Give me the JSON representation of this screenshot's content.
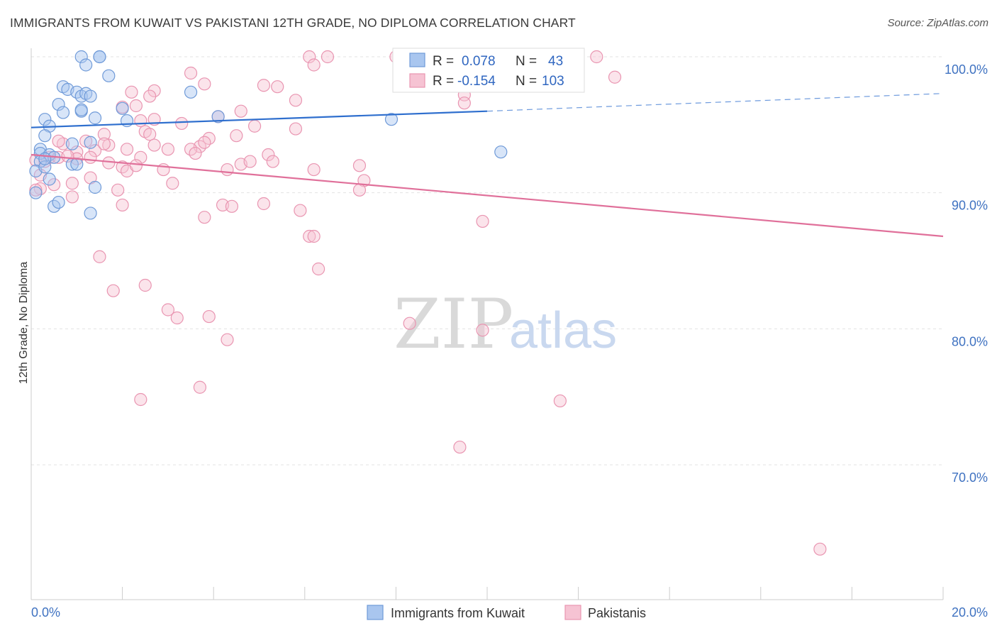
{
  "header": {
    "title": "IMMIGRANTS FROM KUWAIT VS PAKISTANI 12TH GRADE, NO DIPLOMA CORRELATION CHART",
    "source": "Source: ZipAtlas.com"
  },
  "watermark": {
    "zip": "ZIP",
    "atlas": "atlas"
  },
  "colors": {
    "kuwait_fill": "#a9c6ef",
    "kuwait_stroke": "#6f9ad8",
    "kuwait_line": "#2f6fce",
    "pak_fill": "#f6c3d3",
    "pak_stroke": "#e995b1",
    "pak_line": "#e0709a",
    "tick_label": "#3f72c1",
    "grid": "#e3e3e3"
  },
  "legend": {
    "rows": [
      {
        "r_label": "R =",
        "r_value": "0.078",
        "n_label": "N =",
        "n_value": "43"
      },
      {
        "r_label": "R =",
        "r_value": "-0.154",
        "n_label": "N =",
        "n_value": "103"
      }
    ]
  },
  "chart_data": {
    "type": "scatter",
    "xlabel": "",
    "ylabel": "12th Grade, No Diploma",
    "xlim": [
      0,
      20
    ],
    "ylim": [
      60,
      101.5
    ],
    "x_tick_labels": [
      "0.0%",
      "20.0%"
    ],
    "y_ticks": [
      70,
      80,
      90,
      100
    ],
    "y_tick_labels": [
      "70.0%",
      "80.0%",
      "90.0%",
      "100.0%"
    ],
    "grid": true,
    "legend_position": "top-center",
    "series": [
      {
        "name": "Immigrants from Kuwait",
        "trend": {
          "x_start": 0,
          "y_start": 94.8,
          "x_solid_end": 10,
          "y_solid_end": 96.0,
          "x_end": 20,
          "y_end": 97.3
        },
        "points": [
          [
            1.1,
            100
          ],
          [
            1.5,
            100
          ],
          [
            1.5,
            100
          ],
          [
            1.2,
            99.4
          ],
          [
            1.7,
            98.6
          ],
          [
            0.7,
            97.8
          ],
          [
            0.8,
            97.6
          ],
          [
            1.0,
            97.4
          ],
          [
            1.1,
            97.1
          ],
          [
            1.2,
            97.3
          ],
          [
            3.5,
            97.4
          ],
          [
            1.3,
            97.1
          ],
          [
            0.6,
            96.5
          ],
          [
            1.1,
            96.0
          ],
          [
            0.7,
            95.9
          ],
          [
            1.4,
            95.5
          ],
          [
            0.3,
            95.4
          ],
          [
            2.1,
            95.3
          ],
          [
            4.1,
            95.6
          ],
          [
            7.9,
            95.4
          ],
          [
            0.4,
            94.9
          ],
          [
            0.3,
            94.2
          ],
          [
            1.3,
            93.7
          ],
          [
            0.2,
            93.2
          ],
          [
            0.2,
            92.9
          ],
          [
            0.4,
            92.8
          ],
          [
            0.5,
            92.6
          ],
          [
            10.3,
            93.0
          ],
          [
            0.2,
            92.3
          ],
          [
            0.9,
            92.1
          ],
          [
            0.1,
            91.6
          ],
          [
            0.4,
            91.0
          ],
          [
            1.4,
            90.4
          ],
          [
            0.1,
            90.0
          ],
          [
            0.5,
            89.0
          ],
          [
            1.3,
            88.5
          ],
          [
            1.0,
            92.1
          ],
          [
            0.6,
            89.3
          ],
          [
            0.3,
            91.9
          ],
          [
            2.0,
            96.2
          ],
          [
            0.9,
            93.6
          ],
          [
            1.1,
            96.1
          ],
          [
            0.3,
            92.5
          ]
        ]
      },
      {
        "name": "Pakistanis",
        "trend": {
          "x_start": 0,
          "y_start": 92.8,
          "x_end": 20,
          "y_end": 86.8
        },
        "points": [
          [
            6.1,
            100
          ],
          [
            6.5,
            100
          ],
          [
            8.0,
            100
          ],
          [
            11.1,
            100
          ],
          [
            12.4,
            100
          ],
          [
            8.2,
            100
          ],
          [
            3.5,
            98.8
          ],
          [
            6.2,
            99.4
          ],
          [
            8.4,
            99.4
          ],
          [
            12.8,
            98.5
          ],
          [
            8.6,
            98.7
          ],
          [
            3.8,
            98.0
          ],
          [
            5.1,
            97.9
          ],
          [
            5.4,
            97.8
          ],
          [
            2.2,
            97.4
          ],
          [
            2.7,
            97.5
          ],
          [
            2.6,
            97.1
          ],
          [
            9.5,
            97.2
          ],
          [
            9.5,
            96.6
          ],
          [
            2.3,
            96.4
          ],
          [
            2.0,
            96.3
          ],
          [
            4.6,
            96.0
          ],
          [
            4.1,
            95.6
          ],
          [
            2.7,
            95.4
          ],
          [
            2.4,
            95.3
          ],
          [
            3.3,
            95.1
          ],
          [
            4.9,
            94.9
          ],
          [
            5.8,
            94.7
          ],
          [
            2.5,
            94.5
          ],
          [
            2.6,
            94.3
          ],
          [
            1.6,
            94.3
          ],
          [
            4.5,
            94.2
          ],
          [
            3.9,
            94.0
          ],
          [
            1.2,
            93.8
          ],
          [
            0.7,
            93.6
          ],
          [
            2.7,
            93.5
          ],
          [
            3.7,
            93.4
          ],
          [
            1.7,
            93.5
          ],
          [
            3.5,
            93.2
          ],
          [
            2.1,
            93.2
          ],
          [
            1.4,
            93.1
          ],
          [
            1.0,
            93.0
          ],
          [
            3.6,
            92.9
          ],
          [
            5.2,
            92.8
          ],
          [
            2.4,
            92.6
          ],
          [
            0.4,
            92.6
          ],
          [
            0.6,
            92.6
          ],
          [
            0.3,
            92.3
          ],
          [
            1.7,
            92.2
          ],
          [
            1.3,
            92.6
          ],
          [
            4.6,
            92.1
          ],
          [
            3.8,
            93.7
          ],
          [
            1.0,
            92.5
          ],
          [
            0.8,
            92.7
          ],
          [
            0.1,
            92.4
          ],
          [
            2.0,
            91.9
          ],
          [
            2.9,
            91.7
          ],
          [
            4.3,
            91.7
          ],
          [
            6.2,
            91.7
          ],
          [
            2.1,
            91.6
          ],
          [
            0.2,
            91.3
          ],
          [
            1.3,
            91.1
          ],
          [
            0.9,
            90.7
          ],
          [
            3.1,
            90.7
          ],
          [
            0.5,
            90.6
          ],
          [
            7.2,
            92.0
          ],
          [
            7.3,
            90.9
          ],
          [
            0.2,
            90.3
          ],
          [
            0.1,
            90.2
          ],
          [
            7.2,
            90.2
          ],
          [
            0.9,
            89.7
          ],
          [
            5.1,
            89.2
          ],
          [
            4.2,
            89.1
          ],
          [
            2.0,
            89.1
          ],
          [
            4.4,
            89.0
          ],
          [
            5.9,
            88.7
          ],
          [
            3.8,
            88.2
          ],
          [
            9.9,
            87.9
          ],
          [
            6.1,
            86.8
          ],
          [
            6.2,
            86.8
          ],
          [
            1.5,
            85.3
          ],
          [
            6.3,
            84.4
          ],
          [
            2.5,
            83.2
          ],
          [
            1.8,
            82.8
          ],
          [
            3.0,
            81.4
          ],
          [
            3.2,
            80.8
          ],
          [
            3.9,
            80.9
          ],
          [
            8.3,
            80.4
          ],
          [
            9.9,
            79.9
          ],
          [
            4.3,
            79.2
          ],
          [
            3.7,
            75.7
          ],
          [
            2.4,
            74.8
          ],
          [
            11.6,
            74.7
          ],
          [
            9.4,
            71.3
          ],
          [
            17.3,
            63.8
          ],
          [
            5.8,
            96.8
          ],
          [
            1.9,
            90.2
          ],
          [
            3.0,
            93.2
          ],
          [
            5.3,
            92.3
          ],
          [
            4.8,
            92.3
          ],
          [
            0.6,
            93.8
          ],
          [
            1.6,
            93.6
          ],
          [
            2.3,
            92.0
          ]
        ]
      }
    ]
  }
}
